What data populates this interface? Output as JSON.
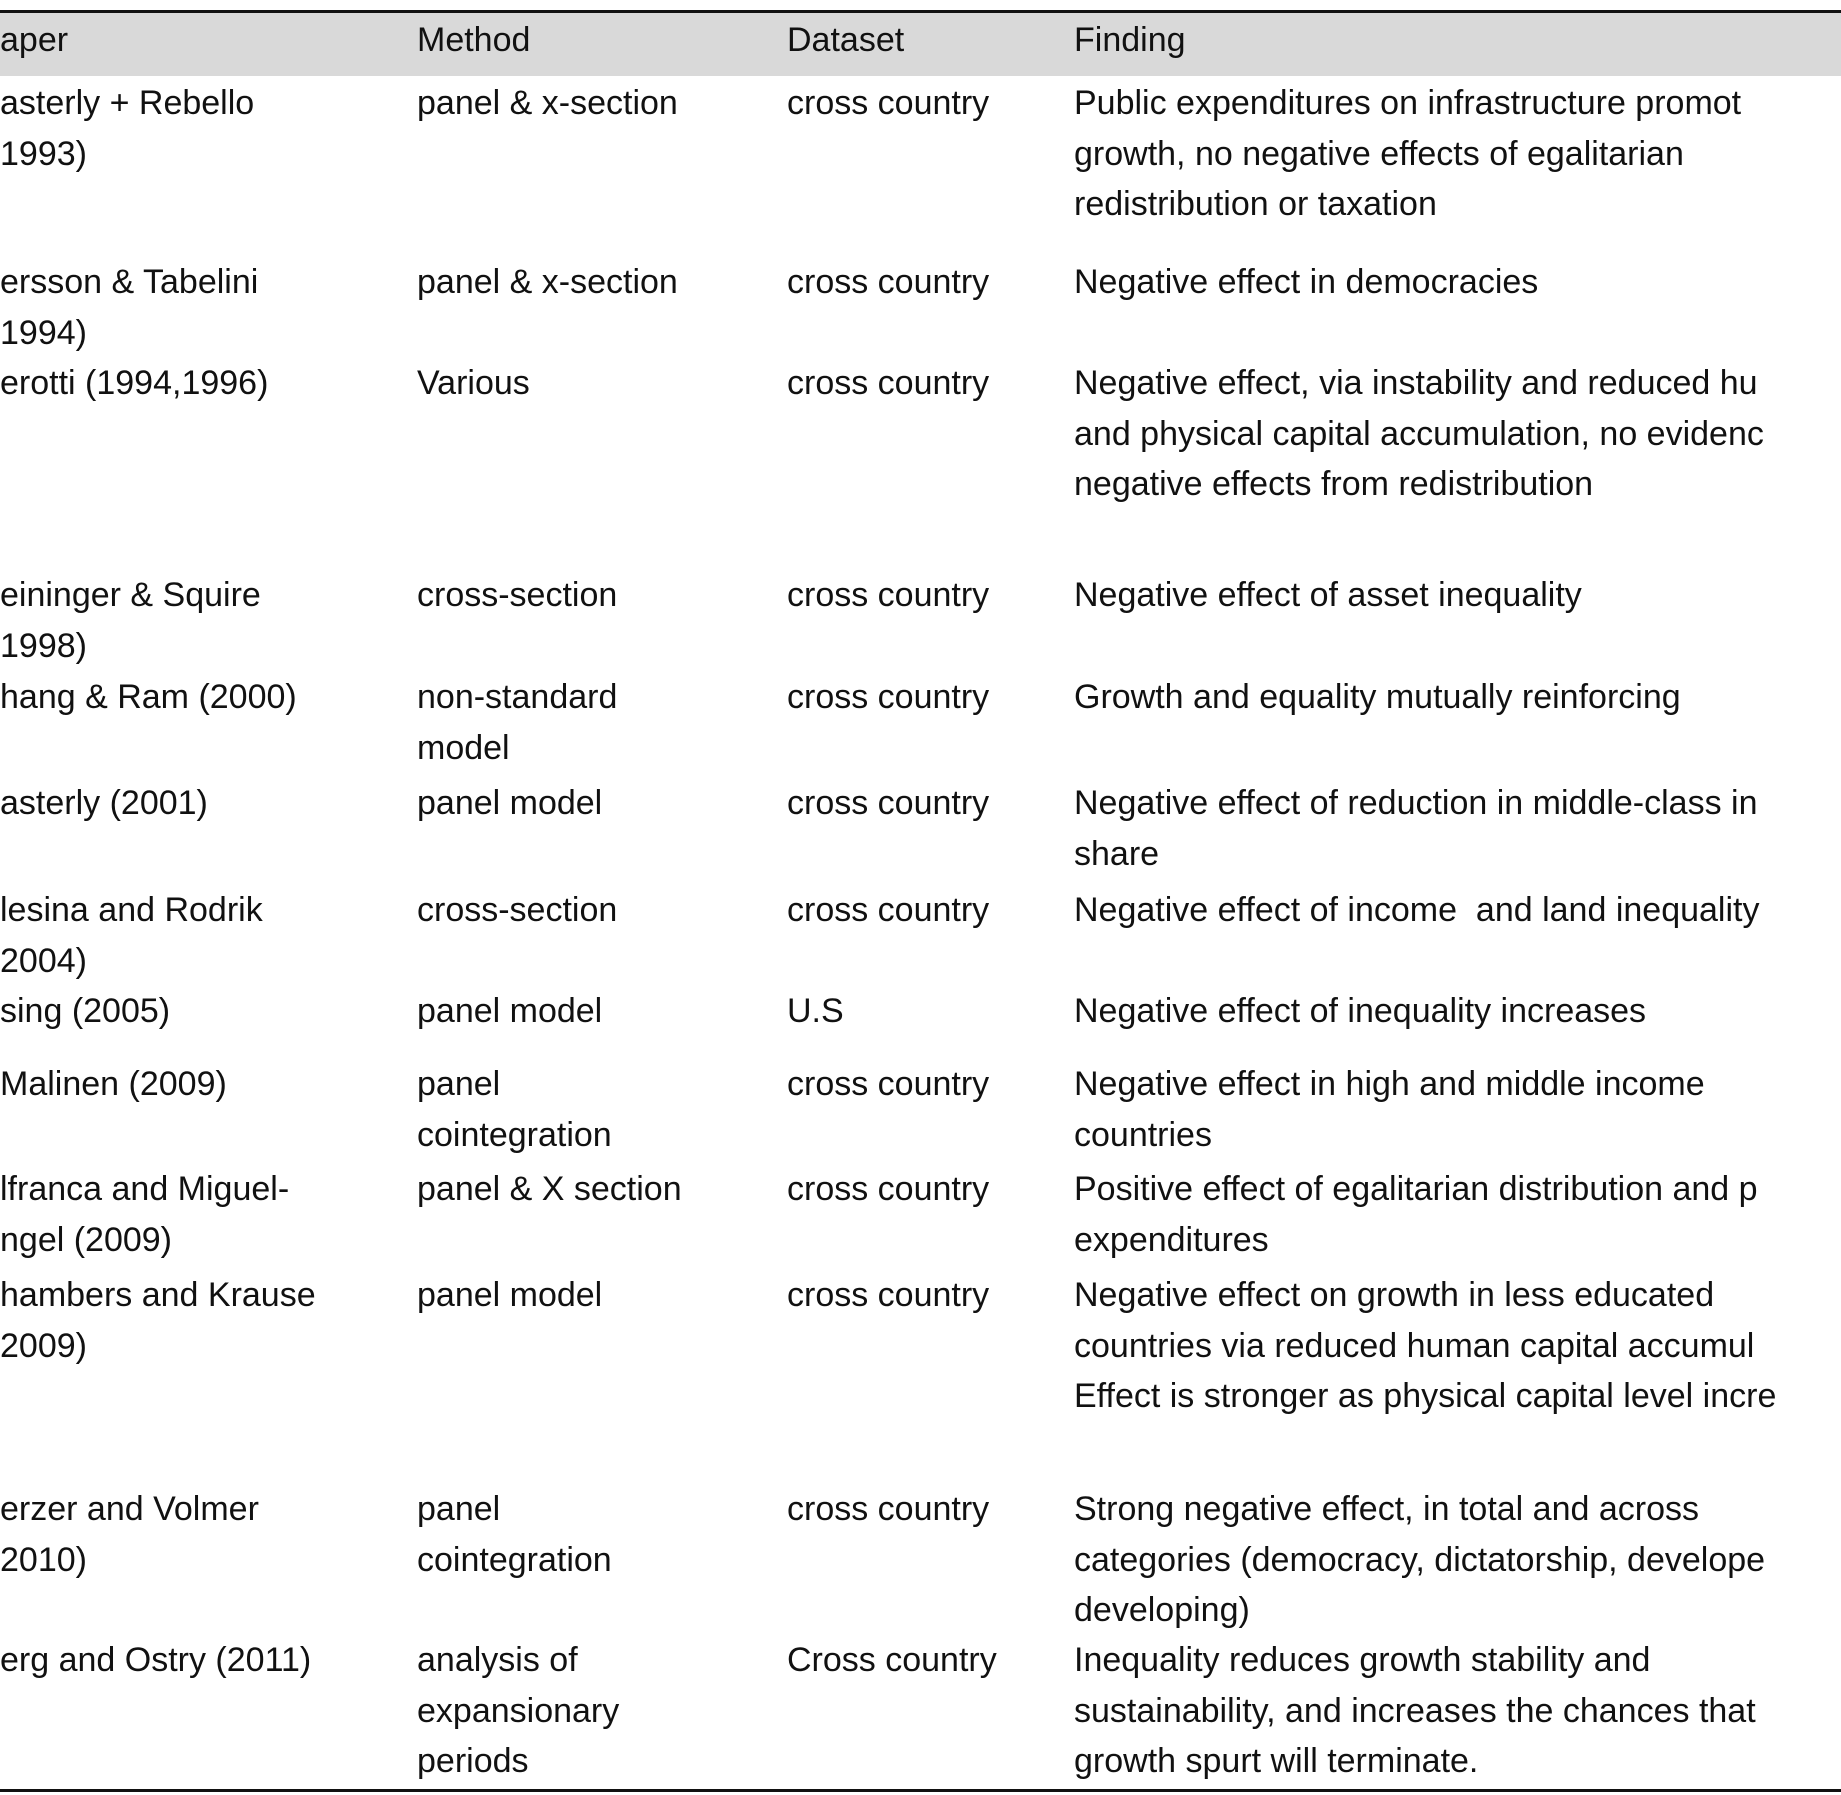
{
  "table": {
    "header": [
      "aper",
      "Method",
      "Dataset",
      "Finding"
    ],
    "rows": [
      [
        [
          "asterly + Rebello",
          "1993)"
        ],
        [
          "panel & x-section"
        ],
        [
          "cross country"
        ],
        [
          "Public expenditures on infrastructure promot",
          "growth, no negative effects of egalitarian",
          "redistribution or taxation"
        ]
      ],
      [
        [
          "ersson & Tabelini",
          "1994)"
        ],
        [
          "panel & x-section"
        ],
        [
          "cross country"
        ],
        [
          "Negative effect in democracies"
        ]
      ],
      [
        [
          "erotti (1994,1996)"
        ],
        [
          "Various"
        ],
        [
          "cross country"
        ],
        [
          "Negative effect, via instability and reduced hu",
          "and physical capital accumulation, no evidenc",
          "negative effects from redistribution"
        ]
      ],
      [
        [
          "eininger & Squire",
          "1998)"
        ],
        [
          "cross-section"
        ],
        [
          "cross country"
        ],
        [
          "Negative effect of asset inequality"
        ]
      ],
      [
        [
          "hang & Ram (2000)"
        ],
        [
          "non-standard",
          "model"
        ],
        [
          "cross country"
        ],
        [
          "Growth and equality mutually reinforcing"
        ]
      ],
      [
        [
          "asterly (2001)"
        ],
        [
          "panel model"
        ],
        [
          "cross country"
        ],
        [
          "Negative effect of reduction in middle-class in",
          "share"
        ]
      ],
      [
        [
          "lesina and Rodrik",
          "2004)"
        ],
        [
          "cross-section"
        ],
        [
          "cross country"
        ],
        [
          "Negative effect of income  and land inequality"
        ]
      ],
      [
        [
          "sing (2005)"
        ],
        [
          "panel model"
        ],
        [
          "U.S"
        ],
        [
          "Negative effect of inequality increases"
        ]
      ],
      [
        [
          "Malinen (2009)"
        ],
        [
          "panel",
          "cointegration"
        ],
        [
          "cross country"
        ],
        [
          "Negative effect in high and middle income",
          "countries"
        ]
      ],
      [
        [
          "lfranca and Miguel-",
          "ngel (2009)"
        ],
        [
          "panel & X section"
        ],
        [
          "cross country"
        ],
        [
          "Positive effect of egalitarian distribution and p",
          "expenditures"
        ]
      ],
      [
        [
          "hambers and Krause",
          "2009)"
        ],
        [
          "panel model"
        ],
        [
          "cross country"
        ],
        [
          "Negative effect on growth in less educated",
          "countries via reduced human capital accumul",
          "Effect is stronger as physical capital level incre"
        ]
      ],
      [
        [
          "erzer and Volmer",
          "2010)"
        ],
        [
          "panel",
          "cointegration"
        ],
        [
          "cross country"
        ],
        [
          "Strong negative effect, in total and across",
          "categories (democracy, dictatorship, develope",
          "developing)"
        ]
      ],
      [
        [
          "erg and Ostry (2011)"
        ],
        [
          "analysis of",
          "expansionary",
          "periods"
        ],
        [
          "Cross country"
        ],
        [
          "Inequality reduces growth stability and",
          "sustainability, and increases the chances that",
          "growth spurt will terminate."
        ]
      ]
    ]
  }
}
